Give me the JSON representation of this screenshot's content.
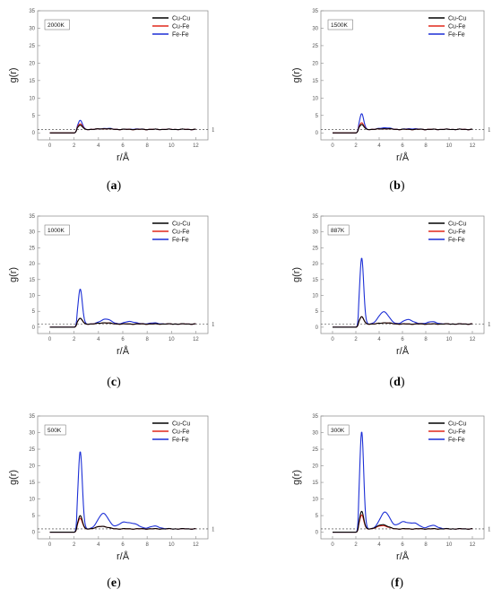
{
  "figure": {
    "x_axis_label": "r/Å",
    "y_axis_label": "g(r)",
    "reference_line_label": "1",
    "colors": {
      "Cu-Cu": "#000000",
      "Cu-Fe": "#e0281c",
      "Fe-Fe": "#1c2fd6"
    }
  },
  "chart_data": [
    {
      "type": "line",
      "panel": "a",
      "caption": "a",
      "temperature_label": "2000K",
      "xlim": [
        -1,
        13
      ],
      "ylim": [
        -2,
        35
      ],
      "xticks": [
        0,
        2,
        4,
        6,
        8,
        10,
        12
      ],
      "yticks": [
        0,
        5,
        10,
        15,
        20,
        25,
        30,
        35
      ],
      "legend": "top-right",
      "reference_line": 1,
      "series": [
        {
          "name": "Cu-Cu",
          "peaks": [
            [
              2.5,
              2.2
            ],
            [
              4.5,
              1.2
            ]
          ]
        },
        {
          "name": "Cu-Fe",
          "peaks": [
            [
              2.5,
              2.6
            ],
            [
              4.5,
              1.2
            ]
          ]
        },
        {
          "name": "Fe-Fe",
          "peaks": [
            [
              2.5,
              3.6
            ],
            [
              4.6,
              1.3
            ],
            [
              7.0,
              1.1
            ]
          ]
        }
      ]
    },
    {
      "type": "line",
      "panel": "b",
      "caption": "b",
      "temperature_label": "1500K",
      "xlim": [
        -1,
        13
      ],
      "ylim": [
        -2,
        35
      ],
      "xticks": [
        0,
        2,
        4,
        6,
        8,
        10,
        12
      ],
      "yticks": [
        0,
        5,
        10,
        15,
        20,
        25,
        30,
        35
      ],
      "legend": "top-right",
      "reference_line": 1,
      "series": [
        {
          "name": "Cu-Cu",
          "peaks": [
            [
              2.5,
              2.4
            ],
            [
              4.5,
              1.2
            ]
          ]
        },
        {
          "name": "Cu-Fe",
          "peaks": [
            [
              2.5,
              2.9
            ],
            [
              4.5,
              1.2
            ]
          ]
        },
        {
          "name": "Fe-Fe",
          "peaks": [
            [
              2.5,
              5.5
            ],
            [
              4.5,
              1.5
            ],
            [
              6.8,
              1.2
            ]
          ]
        }
      ]
    },
    {
      "type": "line",
      "panel": "c",
      "caption": "c",
      "temperature_label": "1000K",
      "xlim": [
        -1,
        13
      ],
      "ylim": [
        -2,
        35
      ],
      "xticks": [
        0,
        2,
        4,
        6,
        8,
        10,
        12
      ],
      "yticks": [
        0,
        5,
        10,
        15,
        20,
        25,
        30,
        35
      ],
      "legend": "top-right",
      "reference_line": 1,
      "series": [
        {
          "name": "Cu-Cu",
          "peaks": [
            [
              2.5,
              2.8
            ],
            [
              4.5,
              1.4
            ]
          ]
        },
        {
          "name": "Cu-Fe",
          "peaks": [
            [
              2.5,
              2.8
            ],
            [
              4.5,
              1.4
            ]
          ]
        },
        {
          "name": "Fe-Fe",
          "peaks": [
            [
              2.5,
              12.0
            ],
            [
              4.6,
              2.6
            ],
            [
              6.6,
              1.8
            ],
            [
              8.5,
              1.3
            ]
          ]
        }
      ]
    },
    {
      "type": "line",
      "panel": "d",
      "caption": "d",
      "temperature_label": "887K",
      "xlim": [
        -1,
        13
      ],
      "ylim": [
        -2,
        35
      ],
      "xticks": [
        0,
        2,
        4,
        6,
        8,
        10,
        12
      ],
      "yticks": [
        0,
        5,
        10,
        15,
        20,
        25,
        30,
        35
      ],
      "legend": "top-right",
      "reference_line": 1,
      "series": [
        {
          "name": "Cu-Cu",
          "peaks": [
            [
              2.5,
              3.3
            ],
            [
              4.5,
              1.4
            ]
          ]
        },
        {
          "name": "Cu-Fe",
          "peaks": [
            [
              2.5,
              3.3
            ],
            [
              4.5,
              1.4
            ]
          ]
        },
        {
          "name": "Fe-Fe",
          "peaks": [
            [
              2.5,
              21.8
            ],
            [
              4.4,
              4.9
            ],
            [
              6.5,
              2.4
            ],
            [
              8.5,
              1.7
            ]
          ]
        }
      ]
    },
    {
      "type": "line",
      "panel": "e",
      "caption": "e",
      "temperature_label": "500K",
      "xlim": [
        -1,
        13
      ],
      "ylim": [
        -2,
        35
      ],
      "xticks": [
        0,
        2,
        4,
        6,
        8,
        10,
        12
      ],
      "yticks": [
        0,
        5,
        10,
        15,
        20,
        25,
        30,
        35
      ],
      "legend": "top-right",
      "reference_line": 1,
      "series": [
        {
          "name": "Cu-Cu",
          "peaks": [
            [
              2.5,
              5.0
            ],
            [
              4.3,
              1.8
            ]
          ]
        },
        {
          "name": "Cu-Fe",
          "peaks": [
            [
              2.5,
              4.2
            ],
            [
              4.3,
              1.8
            ]
          ]
        },
        {
          "name": "Fe-Fe",
          "peaks": [
            [
              2.5,
              24.3
            ],
            [
              4.4,
              5.7
            ],
            [
              6.0,
              2.8
            ],
            [
              6.9,
              2.5
            ],
            [
              8.6,
              1.8
            ]
          ]
        }
      ]
    },
    {
      "type": "line",
      "panel": "f",
      "caption": "f",
      "temperature_label": "300K",
      "xlim": [
        -1,
        13
      ],
      "ylim": [
        -2,
        35
      ],
      "xticks": [
        0,
        2,
        4,
        6,
        8,
        10,
        12
      ],
      "yticks": [
        0,
        5,
        10,
        15,
        20,
        25,
        30,
        35
      ],
      "legend": "top-right",
      "reference_line": 1,
      "series": [
        {
          "name": "Cu-Cu",
          "peaks": [
            [
              2.5,
              6.3
            ],
            [
              4.3,
              2.3
            ]
          ]
        },
        {
          "name": "Cu-Fe",
          "peaks": [
            [
              2.5,
              5.2
            ],
            [
              4.3,
              2.0
            ]
          ]
        },
        {
          "name": "Fe-Fe",
          "peaks": [
            [
              2.5,
              30.3
            ],
            [
              4.5,
              6.1
            ],
            [
              6.0,
              3.0
            ],
            [
              7.0,
              2.7
            ],
            [
              8.6,
              2.0
            ]
          ]
        }
      ]
    }
  ]
}
